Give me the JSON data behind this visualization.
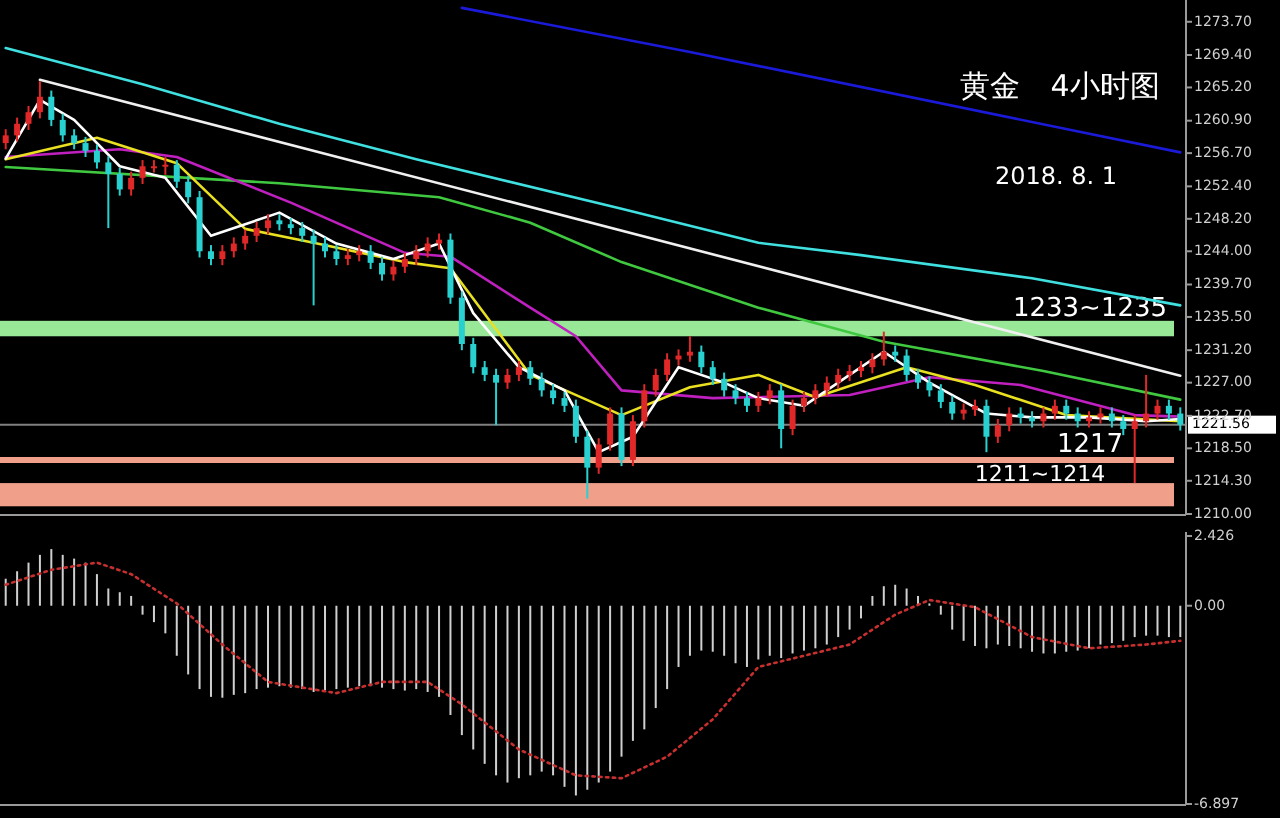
{
  "chart_data": [
    {
      "type": "candlestick",
      "title": "黄金　4小时图",
      "subtitle": "2018. 8. 1",
      "categories": [
        null,
        null,
        null,
        null,
        null,
        null,
        null,
        null,
        null,
        null,
        null,
        null,
        null,
        null,
        null,
        null,
        null,
        null,
        null,
        null,
        null,
        null,
        null,
        null,
        null,
        null,
        null,
        null,
        null,
        null,
        null,
        null,
        null,
        null,
        null,
        null,
        null,
        null,
        null,
        null,
        null,
        null,
        null,
        null,
        null,
        null,
        null,
        null,
        null,
        null,
        null,
        null,
        null,
        null,
        null,
        null,
        null,
        null,
        null,
        null,
        null,
        null,
        null,
        null,
        null,
        null,
        null,
        null,
        null,
        null,
        null,
        null,
        null,
        null,
        null,
        null,
        null,
        null,
        null,
        null,
        null,
        null,
        null,
        null,
        null,
        null,
        null,
        null,
        null,
        null,
        null,
        null,
        null,
        null,
        null,
        null,
        null,
        null,
        null,
        null,
        null,
        null,
        null,
        null
      ],
      "ohlc": [
        [
          1258,
          1259.8,
          1257.2,
          1259
        ],
        [
          1259,
          1261.3,
          1258.2,
          1260.5
        ],
        [
          1260.5,
          1262.8,
          1259.7,
          1262
        ],
        [
          1262,
          1266,
          1261.2,
          1264
        ],
        [
          1264,
          1264.8,
          1260.2,
          1261
        ],
        [
          1261,
          1261.8,
          1258.2,
          1259
        ],
        [
          1259,
          1259.8,
          1257.2,
          1258
        ],
        [
          1258,
          1258.8,
          1256.2,
          1257
        ],
        [
          1257,
          1257.8,
          1254.7,
          1255.5
        ],
        [
          1255.5,
          1256.3,
          1247,
          1254
        ],
        [
          1254,
          1254.8,
          1251.2,
          1252
        ],
        [
          1252,
          1254.3,
          1251.2,
          1253.5
        ],
        [
          1253.5,
          1255.8,
          1252.7,
          1255
        ],
        [
          1255,
          1255.8,
          1254.2,
          1255
        ],
        [
          1255,
          1256.2,
          1253.9,
          1255.2
        ],
        [
          1255.2,
          1255.8,
          1252.2,
          1253
        ],
        [
          1253,
          1253.8,
          1250.2,
          1251
        ],
        [
          1251,
          1251.8,
          1243.2,
          1244
        ],
        [
          1244,
          1244.8,
          1242.2,
          1243
        ],
        [
          1243,
          1244.8,
          1242.2,
          1244
        ],
        [
          1244,
          1245.8,
          1243.2,
          1245
        ],
        [
          1245,
          1246.8,
          1244.2,
          1246
        ],
        [
          1246,
          1247.8,
          1245.2,
          1247
        ],
        [
          1247,
          1248.8,
          1246.2,
          1248
        ],
        [
          1248,
          1248.8,
          1246.7,
          1247.5
        ],
        [
          1247.5,
          1248.3,
          1246.2,
          1247
        ],
        [
          1247,
          1247.8,
          1245.2,
          1246
        ],
        [
          1246,
          1246.8,
          1237,
          1245
        ],
        [
          1245,
          1245.8,
          1243.2,
          1244
        ],
        [
          1244,
          1244.8,
          1242.2,
          1243
        ],
        [
          1243,
          1244.3,
          1242.2,
          1243.5
        ],
        [
          1243.5,
          1244.8,
          1242.7,
          1244
        ],
        [
          1244,
          1244.8,
          1241.7,
          1242.5
        ],
        [
          1242.5,
          1243.3,
          1240.2,
          1241
        ],
        [
          1241,
          1242.8,
          1240.2,
          1242
        ],
        [
          1242,
          1243.8,
          1241.2,
          1243
        ],
        [
          1243,
          1244.8,
          1242.2,
          1244
        ],
        [
          1244,
          1245.8,
          1243.2,
          1245
        ],
        [
          1245,
          1246.3,
          1244.2,
          1245.5
        ],
        [
          1245.5,
          1246.3,
          1237.2,
          1238
        ],
        [
          1238,
          1238.8,
          1231.2,
          1232
        ],
        [
          1232,
          1232.8,
          1228.2,
          1229
        ],
        [
          1229,
          1229.8,
          1227.2,
          1228
        ],
        [
          1228,
          1228.8,
          1221.5,
          1227
        ],
        [
          1227,
          1228.8,
          1226.2,
          1228
        ],
        [
          1228,
          1229.8,
          1227.2,
          1229
        ],
        [
          1229,
          1229.8,
          1226.7,
          1227.5
        ],
        [
          1227.5,
          1228.3,
          1225.2,
          1226
        ],
        [
          1226,
          1226.8,
          1224.2,
          1225
        ],
        [
          1225,
          1225.8,
          1223.2,
          1224
        ],
        [
          1224,
          1224.8,
          1219.2,
          1220
        ],
        [
          1220,
          1220.8,
          1212,
          1216
        ],
        [
          1216,
          1219.8,
          1215.2,
          1219
        ],
        [
          1219,
          1223.8,
          1218.2,
          1223
        ],
        [
          1223,
          1223.8,
          1216.2,
          1217
        ],
        [
          1217,
          1222.8,
          1216.2,
          1222
        ],
        [
          1222,
          1226.8,
          1221.2,
          1226
        ],
        [
          1226,
          1228.8,
          1225.2,
          1228
        ],
        [
          1228,
          1230.8,
          1227.2,
          1230
        ],
        [
          1230,
          1231.3,
          1229.2,
          1230.5
        ],
        [
          1230.5,
          1233,
          1229.7,
          1231
        ],
        [
          1231,
          1231.8,
          1228.2,
          1229
        ],
        [
          1229,
          1229.8,
          1226.7,
          1227.5
        ],
        [
          1227.5,
          1228.3,
          1225.2,
          1226
        ],
        [
          1226,
          1226.8,
          1224.2,
          1225
        ],
        [
          1225,
          1225.8,
          1223.2,
          1224
        ],
        [
          1224,
          1225.8,
          1223.2,
          1225
        ],
        [
          1225,
          1226.8,
          1224.2,
          1226
        ],
        [
          1226,
          1226.8,
          1218.5,
          1221
        ],
        [
          1221,
          1224.8,
          1220.2,
          1224
        ],
        [
          1224,
          1225.8,
          1223.2,
          1225
        ],
        [
          1225,
          1226.8,
          1224.2,
          1226
        ],
        [
          1226,
          1227.8,
          1225.2,
          1227
        ],
        [
          1227,
          1228.8,
          1226.2,
          1228
        ],
        [
          1228,
          1229.3,
          1227.2,
          1228.5
        ],
        [
          1228.5,
          1229.8,
          1227.7,
          1229
        ],
        [
          1229,
          1230.8,
          1228.2,
          1230
        ],
        [
          1230,
          1233.6,
          1229.2,
          1231
        ],
        [
          1231,
          1231.8,
          1229.7,
          1230.5
        ],
        [
          1230.5,
          1231.3,
          1227.2,
          1228
        ],
        [
          1228,
          1228.8,
          1226.2,
          1227
        ],
        [
          1227,
          1227.8,
          1225.2,
          1226
        ],
        [
          1226,
          1226.8,
          1223.7,
          1224.5
        ],
        [
          1224.5,
          1225.3,
          1222.2,
          1223
        ],
        [
          1223,
          1224.3,
          1222.2,
          1223.5
        ],
        [
          1223.5,
          1224.8,
          1222.7,
          1224
        ],
        [
          1224,
          1224.8,
          1218,
          1220
        ],
        [
          1220,
          1222.3,
          1219.2,
          1221.5
        ],
        [
          1221.5,
          1223.8,
          1220.7,
          1223
        ],
        [
          1223,
          1223.8,
          1221.7,
          1222.5
        ],
        [
          1222.5,
          1223.3,
          1221.2,
          1222
        ],
        [
          1222,
          1223.8,
          1221.2,
          1223
        ],
        [
          1223,
          1224.8,
          1222.2,
          1224
        ],
        [
          1224,
          1224.8,
          1222.2,
          1223
        ],
        [
          1223,
          1223.8,
          1221.2,
          1222
        ],
        [
          1222,
          1223.3,
          1221.2,
          1222.5
        ],
        [
          1222.5,
          1223.8,
          1221.7,
          1223
        ],
        [
          1223,
          1223.8,
          1221.2,
          1222
        ],
        [
          1222,
          1222.8,
          1220.2,
          1221
        ],
        [
          1221,
          1222.8,
          1214,
          1222
        ],
        [
          1222,
          1228,
          1221.2,
          1223
        ],
        [
          1223,
          1224.8,
          1222.2,
          1224
        ],
        [
          1224,
          1224.8,
          1222.2,
          1223
        ],
        [
          1223,
          1223.8,
          1220.8,
          1221.56
        ]
      ],
      "series": [
        {
          "type": "line",
          "color": "#1a1ad8",
          "values": [
            null,
            null,
            null,
            null,
            null,
            null,
            null,
            null,
            null,
            null,
            null,
            null,
            null,
            null,
            null,
            null,
            null,
            null,
            null,
            null,
            null,
            null,
            null,
            null,
            null,
            null,
            null,
            null,
            null,
            null,
            null,
            null,
            null,
            null,
            null,
            null,
            null,
            null,
            null,
            null,
            1275.5,
            null,
            null,
            null,
            null,
            null,
            null,
            null,
            null,
            null,
            null,
            null,
            null,
            null,
            null,
            null,
            null,
            null,
            null,
            null,
            1269.8,
            null,
            null,
            null,
            null,
            null,
            null,
            null,
            null,
            null,
            null,
            null,
            null,
            null,
            null,
            null,
            null,
            null,
            null,
            null,
            null,
            null,
            null,
            null,
            null,
            null,
            null,
            null,
            null,
            null,
            null,
            null,
            null,
            null,
            null,
            null,
            null,
            null,
            null,
            null,
            null,
            null,
            null,
            1256.8
          ]
        },
        {
          "type": "line",
          "color": "#40e0e0",
          "values": [
            1270.3,
            null,
            null,
            null,
            null,
            null,
            null,
            null,
            null,
            null,
            null,
            null,
            1265.6,
            null,
            null,
            null,
            null,
            null,
            null,
            null,
            null,
            null,
            null,
            null,
            1260.5,
            null,
            null,
            null,
            null,
            null,
            null,
            null,
            null,
            null,
            null,
            null,
            1255.9,
            null,
            null,
            null,
            null,
            null,
            null,
            null,
            null,
            null,
            null,
            null,
            null,
            null,
            null,
            null,
            null,
            null,
            1249.5,
            null,
            null,
            null,
            null,
            null,
            null,
            null,
            null,
            null,
            null,
            null,
            1245.1,
            null,
            null,
            null,
            null,
            null,
            null,
            null,
            null,
            1243.5,
            null,
            null,
            null,
            null,
            null,
            null,
            null,
            null,
            null,
            null,
            null,
            null,
            null,
            null,
            1240.5,
            null,
            null,
            null,
            null,
            null,
            null,
            null,
            null,
            null,
            null,
            null,
            null,
            1237
          ]
        },
        {
          "type": "line",
          "color": "#40c840",
          "values": [
            1254.9,
            null,
            null,
            null,
            null,
            null,
            null,
            null,
            null,
            null,
            null,
            null,
            null,
            null,
            null,
            null,
            null,
            null,
            null,
            null,
            null,
            null,
            null,
            null,
            1252.8,
            null,
            null,
            null,
            null,
            null,
            null,
            null,
            null,
            null,
            null,
            null,
            null,
            null,
            1251,
            null,
            null,
            null,
            null,
            null,
            null,
            null,
            1247.7,
            null,
            null,
            null,
            null,
            null,
            null,
            null,
            1242.6,
            null,
            null,
            null,
            null,
            null,
            null,
            null,
            null,
            null,
            null,
            null,
            1236.7,
            null,
            null,
            null,
            null,
            null,
            null,
            null,
            null,
            null,
            null,
            1232.3,
            null,
            null,
            null,
            null,
            null,
            null,
            null,
            null,
            null,
            null,
            null,
            null,
            null,
            1228.5,
            null,
            null,
            null,
            null,
            null,
            null,
            null,
            null,
            null,
            null,
            null,
            1224.8
          ]
        },
        {
          "type": "line",
          "color": "#c020c0",
          "values": [
            1256.2,
            null,
            null,
            null,
            null,
            null,
            null,
            null,
            null,
            null,
            1257.2,
            null,
            null,
            null,
            null,
            1256.2,
            null,
            null,
            null,
            null,
            null,
            null,
            null,
            null,
            null,
            1250.3,
            null,
            null,
            null,
            null,
            null,
            null,
            null,
            null,
            null,
            1243.8,
            null,
            null,
            null,
            1243.3,
            null,
            null,
            null,
            null,
            null,
            null,
            1236.7,
            null,
            null,
            null,
            1233,
            null,
            null,
            null,
            1226,
            null,
            null,
            null,
            null,
            null,
            null,
            null,
            1225,
            null,
            null,
            null,
            null,
            null,
            null,
            null,
            null,
            null,
            null,
            null,
            1225.4,
            null,
            null,
            null,
            null,
            null,
            null,
            1227.7,
            null,
            null,
            null,
            null,
            null,
            null,
            null,
            1226.7,
            null,
            null,
            null,
            null,
            null,
            null,
            null,
            null,
            null,
            1222.8,
            null,
            null,
            null,
            1222.6
          ]
        },
        {
          "type": "line",
          "color": "#e8e020",
          "values": [
            1255.9,
            null,
            null,
            null,
            null,
            null,
            null,
            null,
            1258.7,
            null,
            null,
            null,
            null,
            null,
            null,
            1255.4,
            null,
            null,
            null,
            null,
            null,
            1246.9,
            null,
            null,
            null,
            null,
            null,
            1245.1,
            null,
            null,
            null,
            null,
            null,
            null,
            null,
            1242.6,
            null,
            null,
            null,
            1241.8,
            null,
            null,
            null,
            null,
            null,
            null,
            1228,
            null,
            null,
            null,
            null,
            null,
            null,
            null,
            1222.8,
            null,
            null,
            null,
            null,
            null,
            1226.4,
            null,
            null,
            null,
            null,
            null,
            1228,
            null,
            null,
            null,
            null,
            1225.1,
            null,
            null,
            null,
            null,
            null,
            null,
            null,
            1229,
            null,
            null,
            null,
            null,
            null,
            1226.7,
            null,
            null,
            null,
            null,
            null,
            null,
            null,
            1222.8,
            null,
            null,
            null,
            null,
            null,
            null,
            null,
            null,
            null,
            1222
          ]
        },
        {
          "type": "line",
          "color": "#ffffff",
          "values": [
            1256,
            null,
            null,
            1263.6,
            null,
            null,
            1261,
            null,
            null,
            null,
            1255,
            null,
            null,
            null,
            1253.5,
            null,
            null,
            null,
            1246,
            null,
            null,
            null,
            null,
            null,
            1249,
            null,
            null,
            null,
            null,
            1245,
            null,
            null,
            null,
            null,
            1243,
            null,
            null,
            null,
            1245,
            null,
            null,
            1236,
            null,
            null,
            null,
            1229,
            null,
            null,
            null,
            1226,
            null,
            null,
            1218,
            null,
            null,
            1220,
            null,
            null,
            null,
            1229,
            null,
            null,
            null,
            1227,
            null,
            null,
            1225,
            null,
            null,
            null,
            1224,
            null,
            null,
            null,
            1228,
            null,
            null,
            1231,
            null,
            null,
            null,
            1227,
            null,
            null,
            null,
            null,
            1223,
            null,
            null,
            null,
            1222.5,
            null,
            null,
            null,
            null,
            1222.5,
            null,
            null,
            null,
            null,
            1222,
            null,
            null,
            1222.3
          ]
        },
        {
          "type": "line",
          "color": "#f0f0f0",
          "values": [
            null,
            null,
            null,
            1266.2,
            null,
            null,
            null,
            null,
            null,
            null,
            null,
            null,
            null,
            null,
            null,
            null,
            null,
            null,
            null,
            null,
            null,
            null,
            null,
            null,
            null,
            null,
            null,
            null,
            null,
            null,
            null,
            null,
            null,
            null,
            null,
            null,
            null,
            null,
            null,
            null,
            null,
            null,
            null,
            null,
            null,
            null,
            null,
            null,
            null,
            null,
            null,
            null,
            null,
            null,
            null,
            null,
            null,
            null,
            null,
            null,
            null,
            null,
            null,
            null,
            null,
            null,
            null,
            null,
            null,
            null,
            null,
            null,
            null,
            null,
            null,
            null,
            null,
            null,
            null,
            null,
            null,
            null,
            null,
            null,
            null,
            null,
            null,
            null,
            null,
            null,
            null,
            null,
            null,
            null,
            null,
            null,
            null,
            null,
            null,
            null,
            null,
            null,
            null,
            1227.9
          ]
        }
      ],
      "ylim": [
        1210,
        1276
      ],
      "yticks": [
        {
          "value": 1273.7,
          "label": "1273.70"
        },
        {
          "value": 1269.4,
          "label": "1269.40"
        },
        {
          "value": 1265.2,
          "label": "1265.20"
        },
        {
          "value": 1260.9,
          "label": "1260.90"
        },
        {
          "value": 1256.7,
          "label": "1256.70"
        },
        {
          "value": 1252.4,
          "label": "1252.40"
        },
        {
          "value": 1248.2,
          "label": "1248.20"
        },
        {
          "value": 1244,
          "label": "1244.00"
        },
        {
          "value": 1239.7,
          "label": "1239.70"
        },
        {
          "value": 1235.5,
          "label": "1235.50"
        },
        {
          "value": 1231.2,
          "label": "1231.20"
        },
        {
          "value": 1227,
          "label": "1227.00"
        },
        {
          "value": 1222.7,
          "label": "1222.70"
        },
        {
          "value": 1218.5,
          "label": "1218.50"
        },
        {
          "value": 1214.3,
          "label": "1214.30"
        },
        {
          "value": 1210,
          "label": "1210.00"
        }
      ],
      "tick_labels": "y",
      "bands": [
        {
          "axis": "y",
          "from": 1233,
          "to": 1235,
          "label": "1233~1235",
          "color": "#98e898"
        },
        {
          "axis": "y",
          "from": 1211,
          "to": 1214,
          "label": "1211~1214",
          "color": "#f0a08a"
        }
      ],
      "ref_lines": [
        {
          "axis": "y",
          "value": 1217,
          "label": "1217",
          "color": "#f0a08a"
        },
        {
          "axis": "y",
          "value": 1221.56,
          "label": "1221.56",
          "color": "#808080"
        }
      ]
    },
    {
      "type": "bar",
      "categories": [
        null,
        null,
        null,
        null,
        null,
        null,
        null,
        null,
        null,
        null,
        null,
        null,
        null,
        null,
        null,
        null,
        null,
        null,
        null,
        null,
        null,
        null,
        null,
        null,
        null,
        null,
        null,
        null,
        null,
        null,
        null,
        null,
        null,
        null,
        null,
        null,
        null,
        null,
        null,
        null,
        null,
        null,
        null,
        null,
        null,
        null,
        null,
        null,
        null,
        null,
        null,
        null,
        null,
        null,
        null,
        null,
        null,
        null,
        null,
        null,
        null,
        null,
        null,
        null,
        null,
        null,
        null,
        null,
        null,
        null,
        null,
        null,
        null,
        null,
        null,
        null,
        null,
        null,
        null,
        null,
        null,
        null,
        null,
        null,
        null,
        null,
        null,
        null,
        null,
        null,
        null,
        null,
        null,
        null,
        null,
        null,
        null,
        null,
        null,
        null,
        null,
        null,
        null,
        null
      ],
      "series": [
        {
          "type": "bar",
          "color": "#cfcfcf",
          "values": [
            0.94,
            1.2,
            1.5,
            1.77,
            1.97,
            1.77,
            1.64,
            1.5,
            1.1,
            0.6,
            0.47,
            0.34,
            -0.31,
            -0.57,
            -0.96,
            -1.74,
            -2.39,
            -2.9,
            -3.17,
            -3.2,
            -3.1,
            -3.04,
            -2.9,
            -2.85,
            -2.8,
            -2.85,
            -2.9,
            -3.0,
            -2.95,
            -2.9,
            -2.85,
            -2.8,
            -2.8,
            -2.85,
            -2.9,
            -2.95,
            -2.9,
            -3.0,
            -3.17,
            -3.8,
            -4.5,
            -5.0,
            -5.5,
            -5.9,
            -6.15,
            -6.0,
            -5.9,
            -5.77,
            -5.9,
            -6.3,
            -6.6,
            -6.4,
            -6.15,
            -5.77,
            -5.25,
            -4.7,
            -4.3,
            -3.56,
            -2.9,
            -2.13,
            -1.74,
            -1.56,
            -1.6,
            -1.74,
            -2.0,
            -2.13,
            -1.87,
            -1.74,
            -1.82,
            -1.66,
            -1.56,
            -1.48,
            -1.35,
            -1.09,
            -0.83,
            -0.44,
            0.34,
            0.68,
            0.73,
            0.6,
            0.34,
            0.08,
            -0.31,
            -0.83,
            -1.22,
            -1.4,
            -1.48,
            -1.35,
            -1.4,
            -1.48,
            -1.6,
            -1.66,
            -1.66,
            -1.6,
            -1.56,
            -1.48,
            -1.35,
            -1.3,
            -1.22,
            -1.09,
            -1.04,
            -1.04,
            -1.09,
            -1.09
          ]
        },
        {
          "type": "line",
          "color": "#c83030",
          "line_style": "dotted",
          "values": [
            0.73,
            null,
            null,
            null,
            1.25,
            null,
            null,
            null,
            1.5,
            null,
            null,
            1.1,
            null,
            null,
            null,
            0.08,
            null,
            null,
            null,
            -1.35,
            null,
            null,
            null,
            -2.65,
            null,
            null,
            null,
            null,
            null,
            -3.04,
            null,
            null,
            null,
            -2.65,
            null,
            null,
            null,
            -2.65,
            null,
            null,
            -3.43,
            null,
            null,
            null,
            null,
            -5.0,
            null,
            null,
            null,
            null,
            -5.9,
            null,
            null,
            null,
            -6.0,
            null,
            null,
            null,
            -5.25,
            null,
            null,
            null,
            -3.95,
            null,
            null,
            null,
            -2.13,
            null,
            null,
            null,
            -1.74,
            null,
            null,
            null,
            -1.35,
            null,
            null,
            null,
            -0.31,
            null,
            null,
            0.2,
            null,
            null,
            null,
            -0.05,
            null,
            null,
            null,
            null,
            -1.09,
            null,
            null,
            null,
            null,
            -1.48,
            null,
            null,
            null,
            null,
            -1.35,
            null,
            null,
            -1.22
          ]
        }
      ],
      "ylim": [
        -6.897,
        2.426
      ],
      "yticks": [
        {
          "value": 2.426,
          "label": "2.426"
        },
        {
          "value": 0,
          "label": "0.00"
        },
        {
          "value": -6.897,
          "label": "-6.897"
        }
      ],
      "tick_labels": "y"
    }
  ]
}
